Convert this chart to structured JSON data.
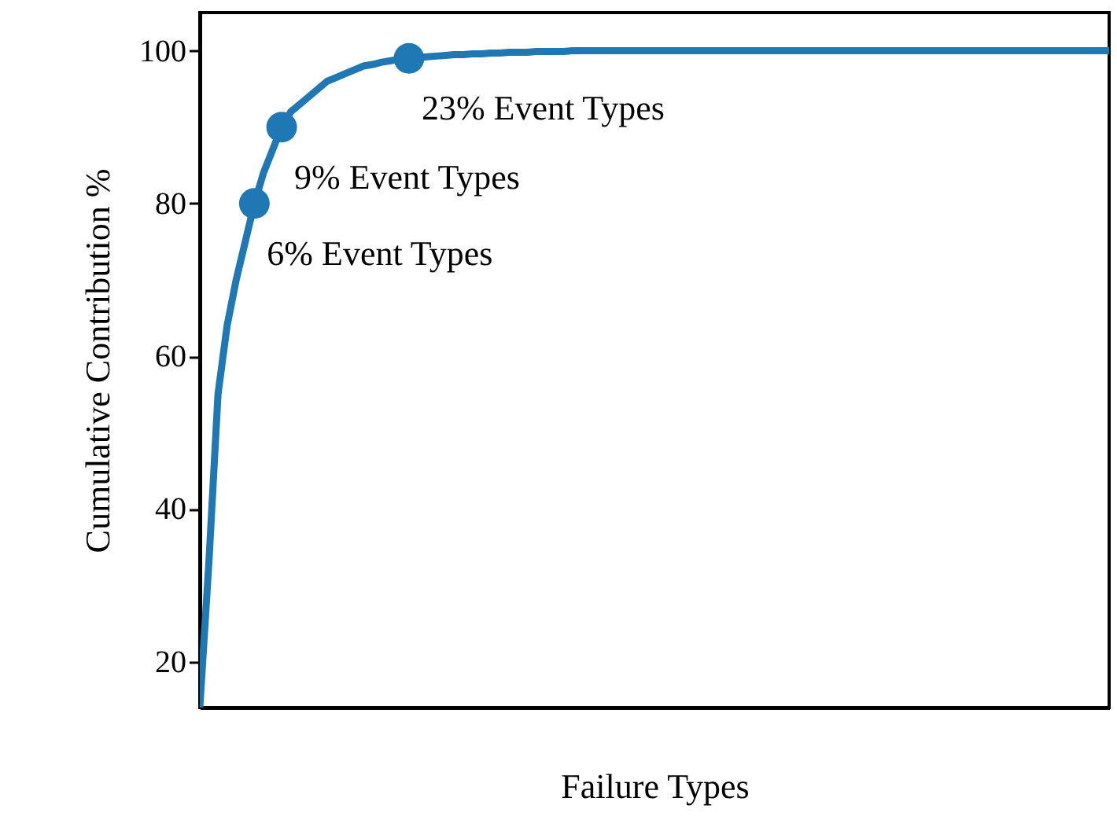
{
  "chart_data": {
    "type": "line",
    "xlabel": "Failure Types",
    "ylabel": "Cumulative Contribution %",
    "categories": [
      null,
      null,
      null,
      null,
      null,
      null,
      null,
      null,
      null,
      null,
      null,
      null,
      null,
      null,
      null,
      null,
      null,
      null,
      null,
      null,
      null,
      null,
      null,
      null,
      null,
      null,
      null,
      null,
      null,
      null,
      null,
      null,
      null,
      null,
      null,
      null,
      null,
      null,
      null,
      null,
      null,
      null,
      null,
      null,
      null,
      null,
      null,
      null,
      null,
      null,
      null,
      null,
      null,
      null,
      null,
      null,
      null,
      null,
      null,
      null,
      null,
      null,
      null,
      null,
      null,
      null,
      null,
      null,
      null,
      null,
      null,
      null,
      null,
      null,
      null,
      null,
      null,
      null,
      null,
      null,
      null,
      null,
      null,
      null,
      null,
      null,
      null,
      null,
      null,
      null,
      null,
      null,
      null,
      null,
      null,
      null,
      null,
      null,
      null,
      null,
      null
    ],
    "series": [
      {
        "color": "#1f77b4",
        "values": [
          14,
          33,
          55,
          64,
          70,
          75,
          80,
          84,
          87,
          90,
          92,
          93,
          94,
          95,
          96,
          96.5,
          97,
          97.5,
          98,
          98.2,
          98.5,
          98.7,
          98.9,
          99,
          99.1,
          99.2,
          99.3,
          99.4,
          99.5,
          99.5,
          99.6,
          99.6,
          99.7,
          99.7,
          99.8,
          99.8,
          99.8,
          99.9,
          99.9,
          99.9,
          99.9,
          100,
          100,
          100,
          100,
          100,
          100,
          100,
          100,
          100,
          100,
          100,
          100,
          100,
          100,
          100,
          100,
          100,
          100,
          100,
          100,
          100,
          100,
          100,
          100,
          100,
          100,
          100,
          100,
          100,
          100,
          100,
          100,
          100,
          100,
          100,
          100,
          100,
          100,
          100,
          100,
          100,
          100,
          100,
          100,
          100,
          100,
          100,
          100,
          100,
          100,
          100,
          100,
          100,
          100,
          100,
          100,
          100,
          100,
          100,
          100
        ]
      },
      {
        "type": "scatter",
        "color": "#1f77b4",
        "marker": "circle",
        "values": [
          null,
          null,
          null,
          null,
          null,
          null,
          80,
          null,
          null,
          90,
          null,
          null,
          null,
          null,
          null,
          null,
          null,
          null,
          null,
          null,
          null,
          null,
          null,
          99,
          null,
          null,
          null,
          null,
          null,
          null,
          null,
          null,
          null,
          null,
          null,
          null,
          null,
          null,
          null,
          null,
          null,
          null,
          null,
          null,
          null,
          null,
          null,
          null,
          null,
          null,
          null,
          null,
          null,
          null,
          null,
          null,
          null,
          null,
          null,
          null,
          null,
          null,
          null,
          null,
          null,
          null,
          null,
          null,
          null,
          null,
          null,
          null,
          null,
          null,
          null,
          null,
          null,
          null,
          null,
          null,
          null,
          null,
          null,
          null,
          null,
          null,
          null,
          null,
          null,
          null,
          null,
          null,
          null,
          null,
          null,
          null,
          null,
          null,
          null,
          null,
          null
        ]
      }
    ],
    "annotations": [
      "6% Event Types",
      "9% Event Types",
      "23% Event Types"
    ],
    "ylim": [
      14,
      105
    ],
    "yticks": [
      20,
      40,
      60,
      80,
      100
    ],
    "grid": false,
    "tick_labels": "y"
  }
}
